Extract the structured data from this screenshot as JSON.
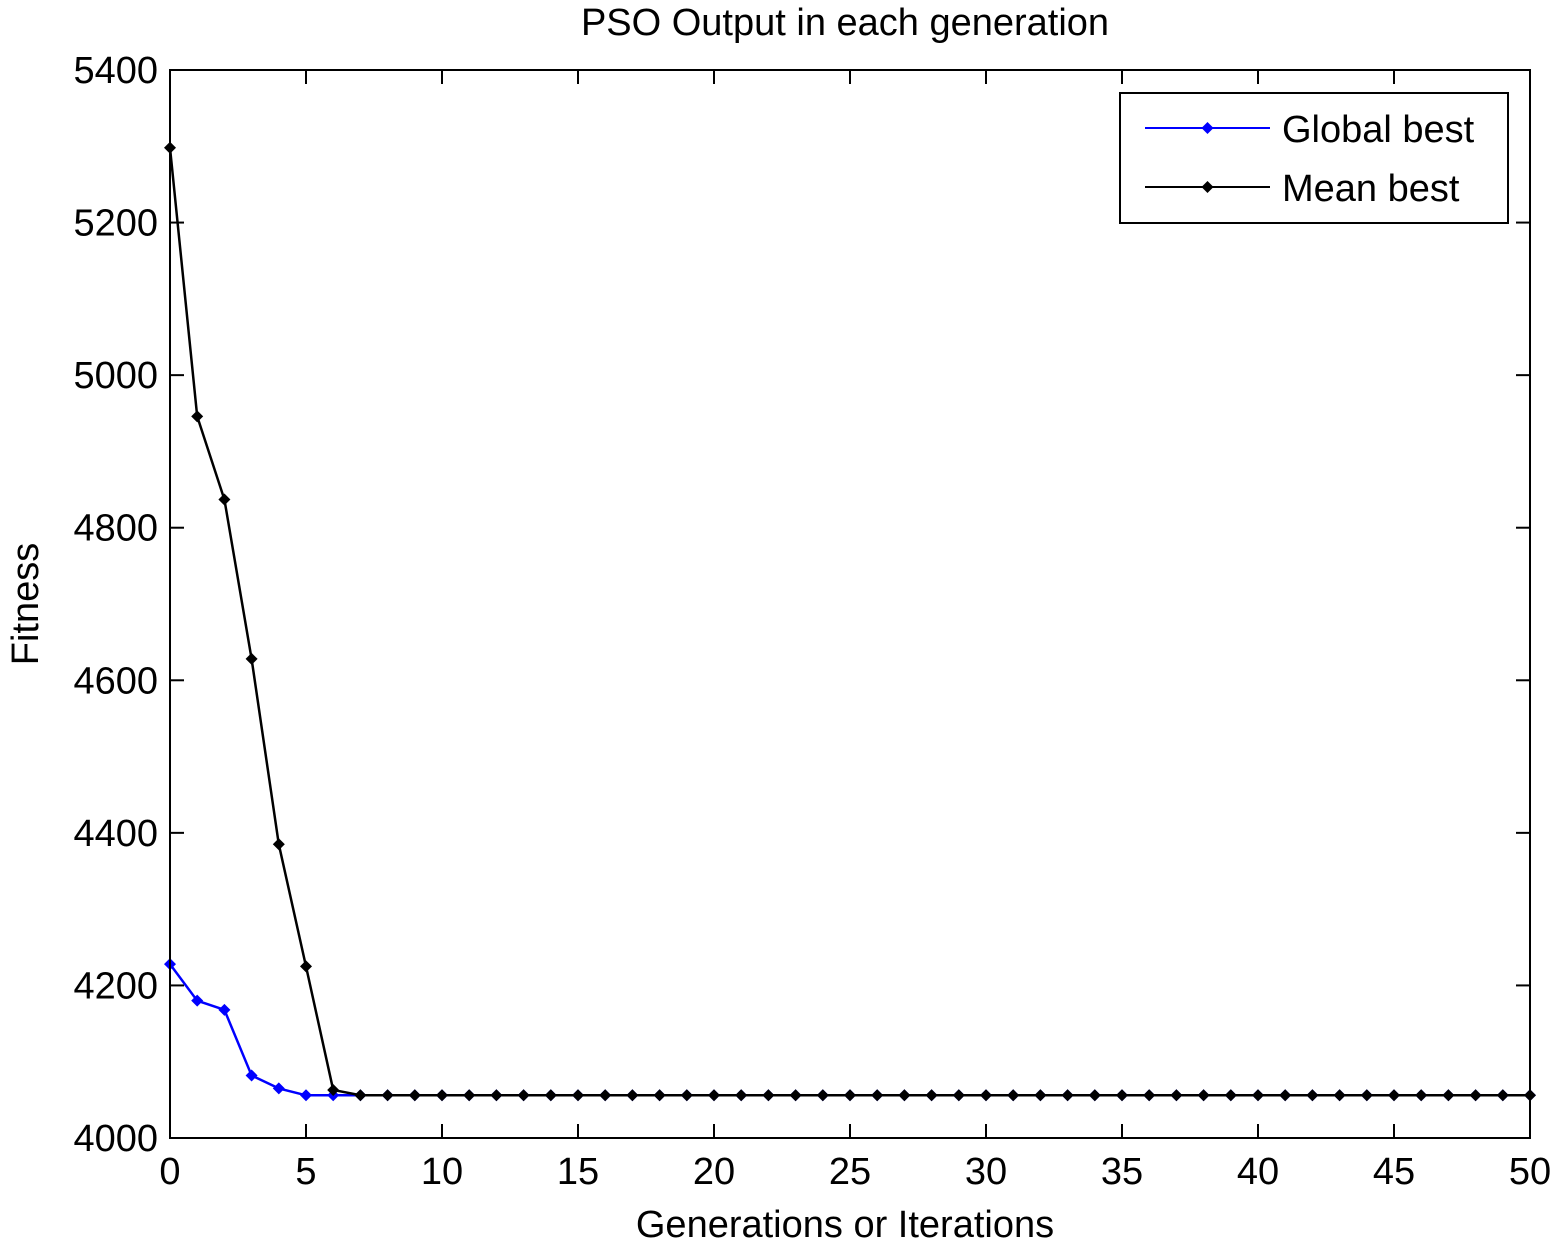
{
  "chart_data": {
    "type": "line",
    "title": "PSO Output in each generation",
    "xlabel": "Generations or Iterations",
    "ylabel": "Fitness",
    "xlim": [
      0,
      50
    ],
    "ylim": [
      4000,
      5400
    ],
    "xticks": [
      0,
      5,
      10,
      15,
      20,
      25,
      30,
      35,
      40,
      45,
      50
    ],
    "yticks": [
      4000,
      4200,
      4400,
      4600,
      4800,
      5000,
      5200,
      5400
    ],
    "grid": false,
    "legend_position": "top-right",
    "x": [
      0,
      1,
      2,
      3,
      4,
      5,
      6,
      7,
      8,
      9,
      10,
      11,
      12,
      13,
      14,
      15,
      16,
      17,
      18,
      19,
      20,
      21,
      22,
      23,
      24,
      25,
      26,
      27,
      28,
      29,
      30,
      31,
      32,
      33,
      34,
      35,
      36,
      37,
      38,
      39,
      40,
      41,
      42,
      43,
      44,
      45,
      46,
      47,
      48,
      49,
      50
    ],
    "series": [
      {
        "name": "Global best",
        "color": "#0000ff",
        "marker": "diamond",
        "values": [
          4228,
          4180,
          4168,
          4082,
          4065,
          4056,
          4056,
          4056,
          4056,
          4056,
          4056,
          4056,
          4056,
          4056,
          4056,
          4056,
          4056,
          4056,
          4056,
          4056,
          4056,
          4056,
          4056,
          4056,
          4056,
          4056,
          4056,
          4056,
          4056,
          4056,
          4056,
          4056,
          4056,
          4056,
          4056,
          4056,
          4056,
          4056,
          4056,
          4056,
          4056,
          4056,
          4056,
          4056,
          4056,
          4056,
          4056,
          4056,
          4056,
          4056,
          4056
        ]
      },
      {
        "name": "Mean best",
        "color": "#000000",
        "marker": "diamond",
        "values": [
          5298,
          4946,
          4837,
          4628,
          4385,
          4225,
          4063,
          4056,
          4056,
          4056,
          4056,
          4056,
          4056,
          4056,
          4056,
          4056,
          4056,
          4056,
          4056,
          4056,
          4056,
          4056,
          4056,
          4056,
          4056,
          4056,
          4056,
          4056,
          4056,
          4056,
          4056,
          4056,
          4056,
          4056,
          4056,
          4056,
          4056,
          4056,
          4056,
          4056,
          4056,
          4056,
          4056,
          4056,
          4056,
          4056,
          4056,
          4056,
          4056,
          4056,
          4056
        ]
      }
    ]
  }
}
